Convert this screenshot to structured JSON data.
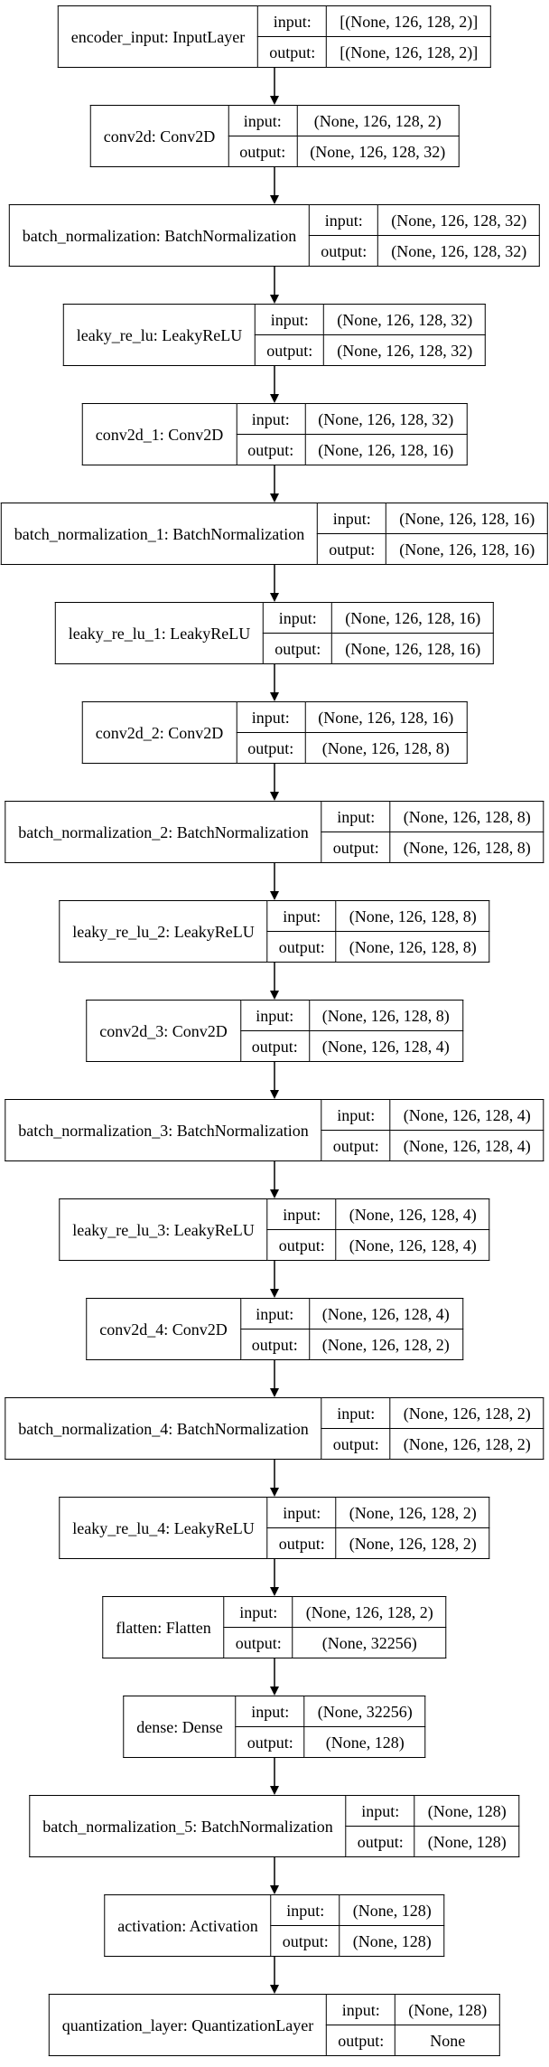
{
  "layers": [
    {
      "name": "encoder_input: InputLayer",
      "input_label": "input:",
      "output_label": "output:",
      "input_shape": "[(None, 126, 128, 2)]",
      "output_shape": "[(None, 126, 128, 2)]"
    },
    {
      "name": "conv2d: Conv2D",
      "input_label": "input:",
      "output_label": "output:",
      "input_shape": "(None, 126, 128, 2)",
      "output_shape": "(None, 126, 128, 32)"
    },
    {
      "name": "batch_normalization: BatchNormalization",
      "input_label": "input:",
      "output_label": "output:",
      "input_shape": "(None, 126, 128, 32)",
      "output_shape": "(None, 126, 128, 32)"
    },
    {
      "name": "leaky_re_lu: LeakyReLU",
      "input_label": "input:",
      "output_label": "output:",
      "input_shape": "(None, 126, 128, 32)",
      "output_shape": "(None, 126, 128, 32)"
    },
    {
      "name": "conv2d_1: Conv2D",
      "input_label": "input:",
      "output_label": "output:",
      "input_shape": "(None, 126, 128, 32)",
      "output_shape": "(None, 126, 128, 16)"
    },
    {
      "name": "batch_normalization_1: BatchNormalization",
      "input_label": "input:",
      "output_label": "output:",
      "input_shape": "(None, 126, 128, 16)",
      "output_shape": "(None, 126, 128, 16)"
    },
    {
      "name": "leaky_re_lu_1: LeakyReLU",
      "input_label": "input:",
      "output_label": "output:",
      "input_shape": "(None, 126, 128, 16)",
      "output_shape": "(None, 126, 128, 16)"
    },
    {
      "name": "conv2d_2: Conv2D",
      "input_label": "input:",
      "output_label": "output:",
      "input_shape": "(None, 126, 128, 16)",
      "output_shape": "(None, 126, 128, 8)"
    },
    {
      "name": "batch_normalization_2: BatchNormalization",
      "input_label": "input:",
      "output_label": "output:",
      "input_shape": "(None, 126, 128, 8)",
      "output_shape": "(None, 126, 128, 8)"
    },
    {
      "name": "leaky_re_lu_2: LeakyReLU",
      "input_label": "input:",
      "output_label": "output:",
      "input_shape": "(None, 126, 128, 8)",
      "output_shape": "(None, 126, 128, 8)"
    },
    {
      "name": "conv2d_3: Conv2D",
      "input_label": "input:",
      "output_label": "output:",
      "input_shape": "(None, 126, 128, 8)",
      "output_shape": "(None, 126, 128, 4)"
    },
    {
      "name": "batch_normalization_3: BatchNormalization",
      "input_label": "input:",
      "output_label": "output:",
      "input_shape": "(None, 126, 128, 4)",
      "output_shape": "(None, 126, 128, 4)"
    },
    {
      "name": "leaky_re_lu_3: LeakyReLU",
      "input_label": "input:",
      "output_label": "output:",
      "input_shape": "(None, 126, 128, 4)",
      "output_shape": "(None, 126, 128, 4)"
    },
    {
      "name": "conv2d_4: Conv2D",
      "input_label": "input:",
      "output_label": "output:",
      "input_shape": "(None, 126, 128, 4)",
      "output_shape": "(None, 126, 128, 2)"
    },
    {
      "name": "batch_normalization_4: BatchNormalization",
      "input_label": "input:",
      "output_label": "output:",
      "input_shape": "(None, 126, 128, 2)",
      "output_shape": "(None, 126, 128, 2)"
    },
    {
      "name": "leaky_re_lu_4: LeakyReLU",
      "input_label": "input:",
      "output_label": "output:",
      "input_shape": "(None, 126, 128, 2)",
      "output_shape": "(None, 126, 128, 2)"
    },
    {
      "name": "flatten: Flatten",
      "input_label": "input:",
      "output_label": "output:",
      "input_shape": "(None, 126, 128, 2)",
      "output_shape": "(None, 32256)"
    },
    {
      "name": "dense: Dense",
      "input_label": "input:",
      "output_label": "output:",
      "input_shape": "(None, 32256)",
      "output_shape": "(None, 128)"
    },
    {
      "name": "batch_normalization_5: BatchNormalization",
      "input_label": "input:",
      "output_label": "output:",
      "input_shape": "(None, 128)",
      "output_shape": "(None, 128)"
    },
    {
      "name": "activation: Activation",
      "input_label": "input:",
      "output_label": "output:",
      "input_shape": "(None, 128)",
      "output_shape": "(None, 128)"
    },
    {
      "name": "quantization_layer: QuantizationLayer",
      "input_label": "input:",
      "output_label": "output:",
      "input_shape": "(None, 128)",
      "output_shape": "None"
    }
  ],
  "colors": {
    "line": "#000000",
    "background": "#ffffff"
  }
}
